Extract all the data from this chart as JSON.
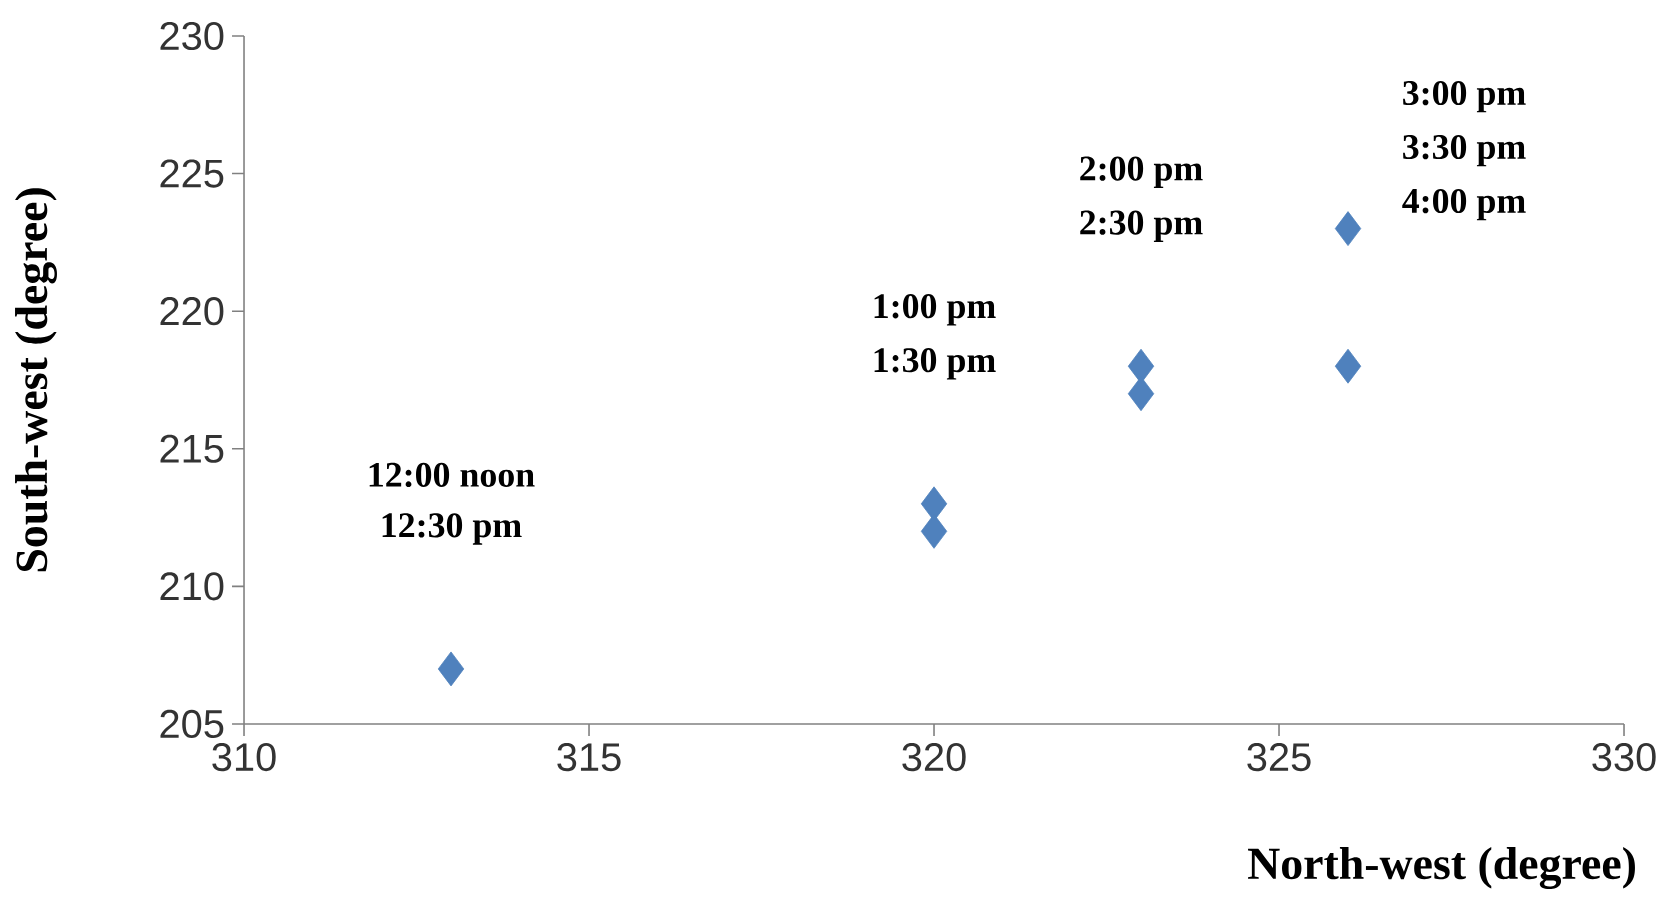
{
  "chart_data": {
    "type": "scatter",
    "xlabel": "North-west (degree)",
    "ylabel": "South-west (degree)",
    "x": [
      313,
      320,
      320,
      323,
      323,
      326,
      326
    ],
    "values": [
      207,
      213,
      212,
      218,
      217,
      223,
      218
    ],
    "color": "#4f81bd",
    "marker": "diamond",
    "grid": false,
    "xlim": [
      310,
      330
    ],
    "xticks": [
      310,
      315,
      320,
      325,
      330
    ],
    "ylim": [
      205,
      230
    ],
    "yticks": [
      205,
      210,
      215,
      220,
      225,
      230
    ],
    "annotations": [
      "12:00 noon",
      "12:30 pm",
      "1:00 pm",
      "1:30 pm",
      "2:00 pm",
      "2:30 pm",
      "3:00 pm",
      "3:30 pm",
      "4:00 pm"
    ]
  }
}
